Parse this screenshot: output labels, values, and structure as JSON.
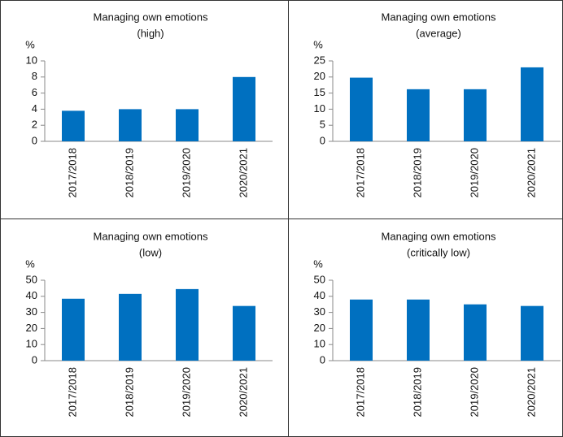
{
  "chart_data": [
    {
      "type": "bar",
      "title": "Managing own emotions",
      "subtitle": "(high)",
      "y_label": "%",
      "categories": [
        "2017/2018",
        "2018/2019",
        "2019/2020",
        "2020/2021"
      ],
      "values": [
        3.8,
        4,
        4,
        8
      ],
      "color": "#0070c0",
      "ylim": [
        0,
        10
      ],
      "yticks": [
        0,
        2,
        4,
        6,
        8,
        10
      ]
    },
    {
      "type": "bar",
      "title": "Managing own emotions",
      "subtitle": "(average)",
      "y_label": "%",
      "categories": [
        "2017/2018",
        "2018/2019",
        "2019/2020",
        "2020/2021"
      ],
      "values": [
        19.8,
        16.2,
        16.2,
        23
      ],
      "color": "#0070c0",
      "ylim": [
        0,
        25
      ],
      "yticks": [
        0,
        5,
        10,
        15,
        20,
        25
      ]
    },
    {
      "type": "bar",
      "title": "Managing own emotions",
      "subtitle": "(low)",
      "y_label": "%",
      "categories": [
        "2017/2018",
        "2018/2019",
        "2019/2020",
        "2020/2021"
      ],
      "values": [
        38.5,
        41.5,
        44.5,
        34
      ],
      "color": "#0070c0",
      "ylim": [
        0,
        50
      ],
      "yticks": [
        0,
        10,
        20,
        30,
        40,
        50
      ]
    },
    {
      "type": "bar",
      "title": "Managing own emotions",
      "subtitle": "(critically low)",
      "y_label": "%",
      "categories": [
        "2017/2018",
        "2018/2019",
        "2019/2020",
        "2020/2021"
      ],
      "values": [
        38,
        38,
        35,
        34
      ],
      "color": "#0070c0",
      "ylim": [
        0,
        50
      ],
      "yticks": [
        0,
        10,
        20,
        30,
        40,
        50
      ]
    }
  ]
}
